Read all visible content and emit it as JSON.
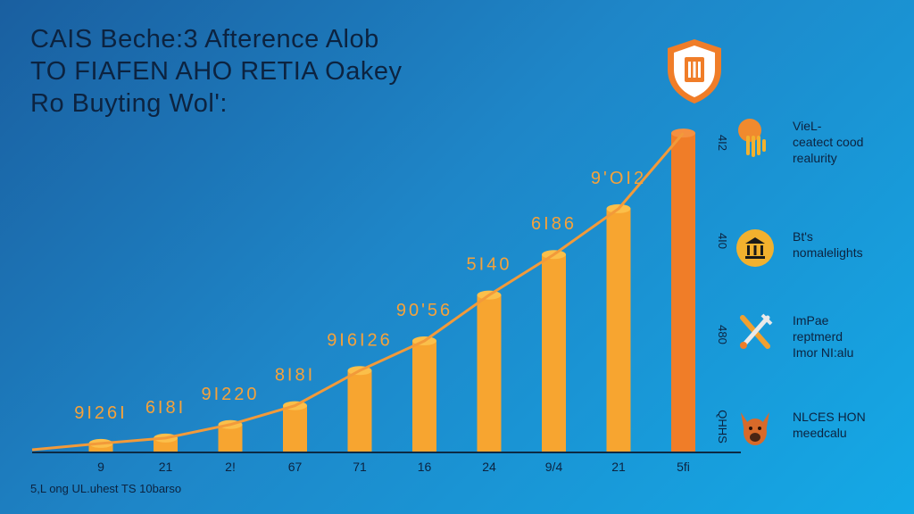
{
  "title": {
    "line1": "CAIS  Beche:3 Afterence Alob",
    "line2": "TO FIAFEN AHO RETIA Oakey",
    "line3": "Ro Buyting Wol':"
  },
  "footnote": "5,L ong UL.uhest TS 10barso",
  "legend": [
    {
      "icon": "hand-icon",
      "line1": "VieL-",
      "line2": "ceatect cood",
      "line3": "realurity",
      "color": "#f08a2e"
    },
    {
      "icon": "bank-icon",
      "line1": "Bt's",
      "line2": "nomalelights",
      "line3": "",
      "color": "#f2b12e"
    },
    {
      "icon": "tools-icon",
      "line1": "ImPae",
      "line2": "reptmerd",
      "line3": "Imor NI:alu",
      "color": "#f0a030"
    },
    {
      "icon": "dog-icon",
      "line1": "NLCES HON",
      "line2": "meedcalu",
      "line3": "",
      "color": "#d86a2a"
    }
  ],
  "chart_data": {
    "type": "bar",
    "categories": [
      "9",
      "21",
      "2!",
      "67",
      "71",
      "16",
      "24",
      "9/4",
      "21",
      "5fi"
    ],
    "values": [
      3,
      5,
      10,
      17,
      30,
      41,
      58,
      73,
      90,
      118
    ],
    "bar_labels": [
      "9I26I",
      "6I8I",
      "9I220",
      "8I8I",
      "9I6I26",
      "90'56",
      "5I40",
      "6I86",
      "9'OI2",
      ""
    ],
    "right_axis_labels": [
      "QHHS",
      "480",
      "4I0",
      "4I2"
    ],
    "ylim": [
      0,
      125
    ],
    "trend_line": true,
    "colors": {
      "bar": "#f7a530",
      "last_bar": "#f07d28",
      "line": "#f29a3a",
      "text": "#f6a23a"
    }
  }
}
